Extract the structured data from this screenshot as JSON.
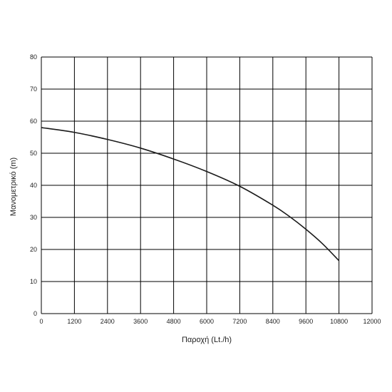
{
  "chart_data": {
    "type": "line",
    "title": "",
    "xlabel": "Παροχή (Lt./h)",
    "ylabel": "Μανομετρικό (m)",
    "xlim": [
      0,
      12000
    ],
    "ylim": [
      0,
      80
    ],
    "x_ticks": [
      0,
      1200,
      2400,
      3600,
      4800,
      6000,
      7200,
      8400,
      9600,
      10800,
      12000
    ],
    "y_ticks": [
      0,
      10,
      20,
      30,
      40,
      50,
      60,
      70,
      80
    ],
    "grid": true,
    "legend": "none",
    "colors": {
      "line": "#1a1a1a",
      "grid": "#000000"
    },
    "series": [
      {
        "x": [
          0,
          1200,
          2400,
          3600,
          4800,
          6000,
          7200,
          8400,
          9000,
          9600,
          10200,
          10800
        ],
        "values": [
          58,
          56.5,
          54.3,
          51.6,
          48.2,
          44.3,
          39.7,
          33.8,
          30.3,
          26.3,
          21.8,
          16.5
        ]
      }
    ]
  }
}
